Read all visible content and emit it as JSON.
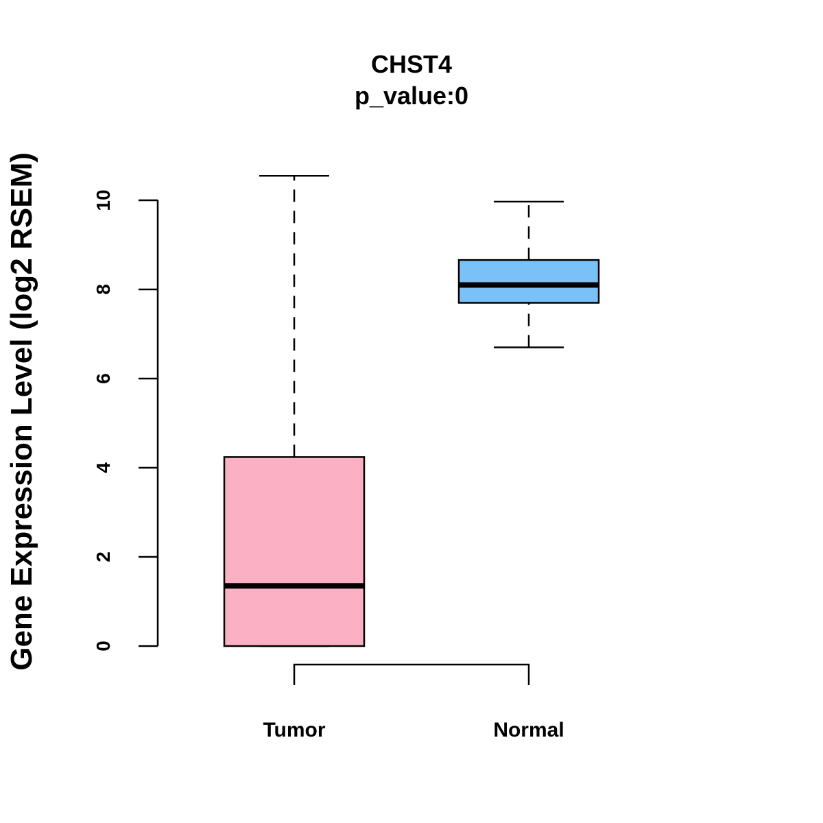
{
  "chart_data": {
    "type": "boxplot",
    "title": "CHST4",
    "subtitle": "p_value:0",
    "xlabel": "",
    "ylabel": "Gene Expression Level (log2 RSEM)",
    "ylim": [
      0,
      10.5
    ],
    "yticks": [
      0,
      2,
      4,
      6,
      8,
      10
    ],
    "categories": [
      "Tumor",
      "Normal"
    ],
    "series": [
      {
        "name": "Tumor",
        "color": "#FBB1C3",
        "min": 0,
        "q1": 0,
        "median": 1.35,
        "q3": 4.24,
        "max": 10.55
      },
      {
        "name": "Normal",
        "color": "#7AC1F8",
        "min": 6.7,
        "q1": 7.7,
        "median": 8.1,
        "q3": 8.66,
        "max": 9.97
      }
    ],
    "comparison_bracket": [
      "Tumor",
      "Normal"
    ]
  }
}
